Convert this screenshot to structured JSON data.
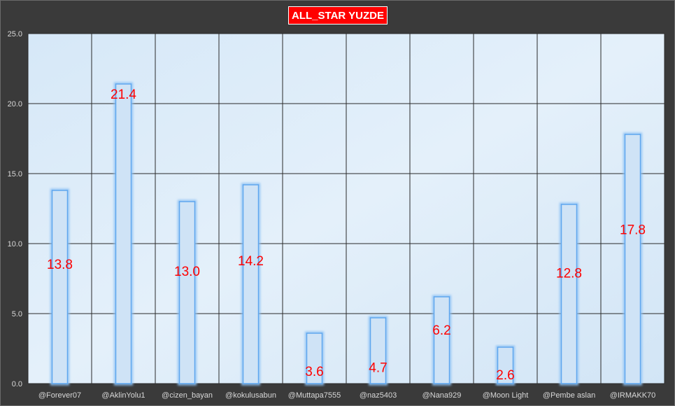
{
  "chart_data": {
    "type": "bar",
    "title": "ALL_STAR YUZDE",
    "xlabel": "",
    "ylabel": "",
    "categories": [
      "@Forever07",
      "@AklinYolu1",
      "@cizen_bayan",
      "@kokulusabun",
      "@Muttapa7555",
      "@naz5403",
      "@Nana929",
      "@Moon Light",
      "@Pembe aslan",
      "@IRMAKK70"
    ],
    "values": [
      13.8,
      21.4,
      13.0,
      14.2,
      3.6,
      4.7,
      6.2,
      2.6,
      12.8,
      17.8
    ],
    "data_labels": [
      "13.8",
      "21.4",
      "13.0",
      "14.2",
      "3.6",
      "4.7",
      "6.2",
      "2.6",
      "12.8",
      "17.8"
    ],
    "yticks": [
      "0.0",
      "5.0",
      "10.0",
      "15.0",
      "20.0",
      "25.0"
    ],
    "ylim": [
      0,
      25
    ],
    "grid": true,
    "legend": "none",
    "colors": {
      "background": "#3a3a3a",
      "plot_area": "#dbeaf7",
      "bar_fill": "#cfe3f6",
      "bar_edge": "#5ea6ee",
      "gridline": "#2a2a2a",
      "data_label": "#ff0000",
      "title_bg": "#ff0000",
      "title_text": "#ffffff"
    }
  }
}
